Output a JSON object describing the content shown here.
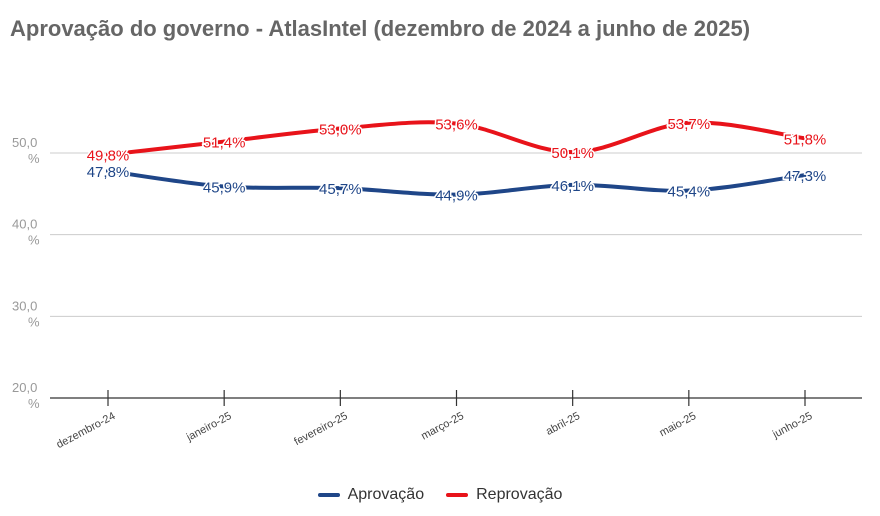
{
  "title": "Aprovação do governo - AtlasIntel (dezembro de 2024 a junho de 2025)",
  "chart_data": {
    "type": "line",
    "title": "Aprovação do governo - AtlasIntel (dezembro de 2024 a junho de 2025)",
    "categories": [
      "dezembro-24",
      "janeiro-25",
      "fevereiro-25",
      "março-25",
      "abril-25",
      "maio-25",
      "junho-25"
    ],
    "series": [
      {
        "name": "Aprovação",
        "color": "#1f4688",
        "values": [
          47.8,
          45.9,
          45.7,
          44.9,
          46.1,
          45.4,
          47.3
        ],
        "labels": [
          "47,8%",
          "45,9%",
          "45,7%",
          "44,9%",
          "46,1%",
          "45,4%",
          "47,3%"
        ]
      },
      {
        "name": "Reprovação",
        "color": "#e8131a",
        "values": [
          49.8,
          51.4,
          53.0,
          53.6,
          50.1,
          53.7,
          51.8
        ],
        "labels": [
          "49,8%",
          "51,4%",
          "53,0%",
          "53,6%",
          "50,1%",
          "53,7%",
          "51,8%"
        ]
      }
    ],
    "y_ticks": [
      {
        "value": 20,
        "label": "20,0 %"
      },
      {
        "value": 30,
        "label": "30,0 %"
      },
      {
        "value": 40,
        "label": "40,0 %"
      },
      {
        "value": 50,
        "label": "50,0 %"
      }
    ],
    "ylim": [
      20,
      50
    ],
    "grid": true,
    "legend_position": "bottom",
    "xlabel": "",
    "ylabel": ""
  }
}
